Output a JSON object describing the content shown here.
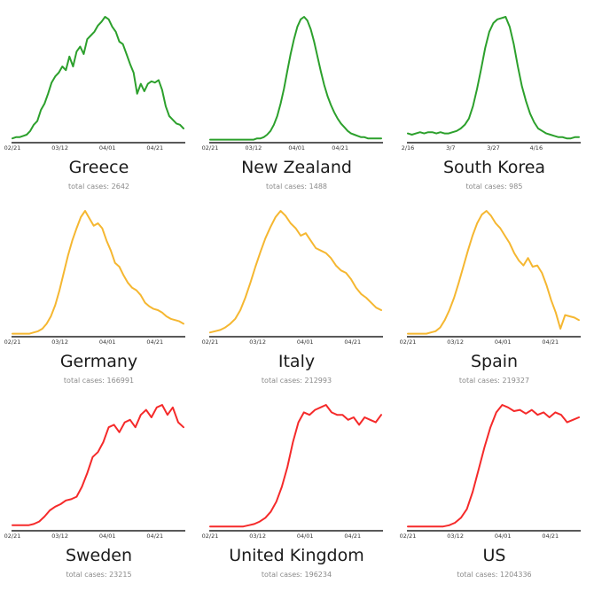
{
  "colors": {
    "green": "#2ca02c",
    "orange": "#f5b731",
    "red": "#f52a2a"
  },
  "chart_data": [
    {
      "type": "line",
      "country": "Greece",
      "total_label": "total cases: 2642",
      "color": "green",
      "xticks": [
        "02/21",
        "03/12",
        "04/01",
        "04/21"
      ],
      "xtick_pos": [
        0,
        20,
        40,
        60
      ],
      "x_range": [
        0,
        72
      ],
      "ylim": [
        0,
        1
      ],
      "values": [
        0.02,
        0.03,
        0.03,
        0.04,
        0.05,
        0.08,
        0.13,
        0.16,
        0.25,
        0.3,
        0.38,
        0.47,
        0.52,
        0.55,
        0.6,
        0.57,
        0.68,
        0.6,
        0.72,
        0.76,
        0.7,
        0.82,
        0.85,
        0.88,
        0.93,
        0.96,
        1.0,
        0.98,
        0.92,
        0.88,
        0.8,
        0.78,
        0.7,
        0.62,
        0.55,
        0.38,
        0.46,
        0.4,
        0.46,
        0.48,
        0.47,
        0.49,
        0.41,
        0.28,
        0.2,
        0.17,
        0.14,
        0.13,
        0.1
      ]
    },
    {
      "type": "line",
      "country": "New Zealand",
      "total_label": "total cases: 1488",
      "color": "green",
      "xticks": [
        "02/21",
        "03/12",
        "04/01",
        "04/21"
      ],
      "xtick_pos": [
        0,
        20,
        40,
        60
      ],
      "x_range": [
        0,
        79
      ],
      "ylim": [
        0,
        1
      ],
      "values": [
        0.01,
        0.01,
        0.01,
        0.01,
        0.01,
        0.01,
        0.01,
        0.01,
        0.01,
        0.01,
        0.01,
        0.01,
        0.01,
        0.01,
        0.02,
        0.02,
        0.03,
        0.05,
        0.08,
        0.13,
        0.2,
        0.3,
        0.42,
        0.56,
        0.7,
        0.82,
        0.92,
        0.98,
        1.0,
        0.97,
        0.9,
        0.8,
        0.68,
        0.56,
        0.45,
        0.36,
        0.29,
        0.23,
        0.18,
        0.14,
        0.11,
        0.08,
        0.06,
        0.05,
        0.04,
        0.03,
        0.03,
        0.02,
        0.02,
        0.02,
        0.02,
        0.02
      ]
    },
    {
      "type": "line",
      "country": "South Korea",
      "total_label": "total cases: 985",
      "color": "green",
      "xticks": [
        "2/16",
        "3/7",
        "3/27",
        "4/16"
      ],
      "xtick_pos": [
        0,
        20,
        40,
        60
      ],
      "x_range": [
        0,
        80
      ],
      "ylim": [
        0,
        1
      ],
      "values": [
        0.06,
        0.05,
        0.06,
        0.07,
        0.06,
        0.07,
        0.07,
        0.06,
        0.07,
        0.06,
        0.06,
        0.07,
        0.08,
        0.1,
        0.13,
        0.18,
        0.28,
        0.42,
        0.58,
        0.75,
        0.88,
        0.95,
        0.98,
        0.99,
        1.0,
        0.92,
        0.78,
        0.6,
        0.44,
        0.32,
        0.22,
        0.15,
        0.1,
        0.08,
        0.06,
        0.05,
        0.04,
        0.03,
        0.03,
        0.02,
        0.02,
        0.03,
        0.03
      ]
    },
    {
      "type": "line",
      "country": "Germany",
      "total_label": "total cases: 166991",
      "color": "orange",
      "xticks": [
        "02/21",
        "03/12",
        "04/01",
        "04/21"
      ],
      "xtick_pos": [
        0,
        20,
        40,
        60
      ],
      "x_range": [
        0,
        72
      ],
      "ylim": [
        0,
        1
      ],
      "values": [
        0.01,
        0.01,
        0.01,
        0.01,
        0.01,
        0.02,
        0.03,
        0.05,
        0.09,
        0.15,
        0.24,
        0.36,
        0.5,
        0.64,
        0.76,
        0.86,
        0.95,
        1.0,
        0.94,
        0.88,
        0.9,
        0.86,
        0.76,
        0.68,
        0.58,
        0.55,
        0.48,
        0.42,
        0.38,
        0.36,
        0.32,
        0.26,
        0.23,
        0.21,
        0.2,
        0.18,
        0.15,
        0.13,
        0.12,
        0.11,
        0.09
      ]
    },
    {
      "type": "line",
      "country": "Italy",
      "total_label": "total cases: 212993",
      "color": "orange",
      "xticks": [
        "02/21",
        "03/12",
        "04/01",
        "04/21"
      ],
      "xtick_pos": [
        0,
        20,
        40,
        60
      ],
      "x_range": [
        0,
        72
      ],
      "ylim": [
        0,
        1
      ],
      "values": [
        0.02,
        0.03,
        0.04,
        0.06,
        0.09,
        0.13,
        0.2,
        0.3,
        0.42,
        0.55,
        0.67,
        0.78,
        0.87,
        0.95,
        1.0,
        0.96,
        0.9,
        0.86,
        0.8,
        0.82,
        0.76,
        0.7,
        0.68,
        0.66,
        0.62,
        0.56,
        0.52,
        0.5,
        0.45,
        0.38,
        0.33,
        0.3,
        0.26,
        0.22,
        0.2
      ]
    },
    {
      "type": "line",
      "country": "Spain",
      "total_label": "total cases: 219327",
      "color": "orange",
      "xticks": [
        "02/21",
        "03/12",
        "04/01",
        "04/21"
      ],
      "xtick_pos": [
        0,
        20,
        40,
        60
      ],
      "x_range": [
        0,
        72
      ],
      "ylim": [
        0,
        1
      ],
      "values": [
        0.01,
        0.01,
        0.01,
        0.01,
        0.01,
        0.02,
        0.03,
        0.06,
        0.12,
        0.2,
        0.3,
        0.42,
        0.55,
        0.68,
        0.8,
        0.9,
        0.97,
        1.0,
        0.96,
        0.9,
        0.86,
        0.8,
        0.74,
        0.66,
        0.6,
        0.56,
        0.62,
        0.55,
        0.56,
        0.5,
        0.4,
        0.28,
        0.18,
        0.05,
        0.16,
        0.15,
        0.14,
        0.12
      ]
    },
    {
      "type": "line",
      "country": "Sweden",
      "total_label": "total cases: 23215",
      "color": "red",
      "xticks": [
        "02/21",
        "03/12",
        "04/01",
        "04/21"
      ],
      "xtick_pos": [
        0,
        20,
        40,
        60
      ],
      "x_range": [
        0,
        72
      ],
      "ylim": [
        0,
        1
      ],
      "values": [
        0.03,
        0.03,
        0.03,
        0.03,
        0.04,
        0.06,
        0.1,
        0.15,
        0.18,
        0.2,
        0.23,
        0.24,
        0.26,
        0.34,
        0.45,
        0.58,
        0.62,
        0.7,
        0.82,
        0.84,
        0.78,
        0.86,
        0.88,
        0.82,
        0.92,
        0.96,
        0.9,
        0.98,
        1.0,
        0.92,
        0.98,
        0.86,
        0.82
      ]
    },
    {
      "type": "line",
      "country": "United Kingdom",
      "total_label": "total cases: 196234",
      "color": "red",
      "xticks": [
        "02/21",
        "03/12",
        "04/01",
        "04/21"
      ],
      "xtick_pos": [
        0,
        20,
        40,
        60
      ],
      "x_range": [
        0,
        72
      ],
      "ylim": [
        0,
        1
      ],
      "values": [
        0.02,
        0.02,
        0.02,
        0.02,
        0.02,
        0.02,
        0.02,
        0.03,
        0.04,
        0.06,
        0.09,
        0.14,
        0.22,
        0.34,
        0.5,
        0.7,
        0.86,
        0.94,
        0.92,
        0.96,
        0.98,
        1.0,
        0.94,
        0.92,
        0.92,
        0.88,
        0.9,
        0.84,
        0.9,
        0.88,
        0.86,
        0.92
      ]
    },
    {
      "type": "line",
      "country": "US",
      "total_label": "total cases: 1204336",
      "color": "red",
      "xticks": [
        "02/21",
        "03/12",
        "04/01",
        "04/21"
      ],
      "xtick_pos": [
        0,
        20,
        40,
        60
      ],
      "x_range": [
        0,
        72
      ],
      "ylim": [
        0,
        1
      ],
      "values": [
        0.02,
        0.02,
        0.02,
        0.02,
        0.02,
        0.02,
        0.02,
        0.03,
        0.05,
        0.09,
        0.16,
        0.3,
        0.48,
        0.66,
        0.82,
        0.94,
        1.0,
        0.98,
        0.95,
        0.96,
        0.93,
        0.96,
        0.92,
        0.94,
        0.9,
        0.94,
        0.92,
        0.86,
        0.88,
        0.9
      ]
    }
  ]
}
